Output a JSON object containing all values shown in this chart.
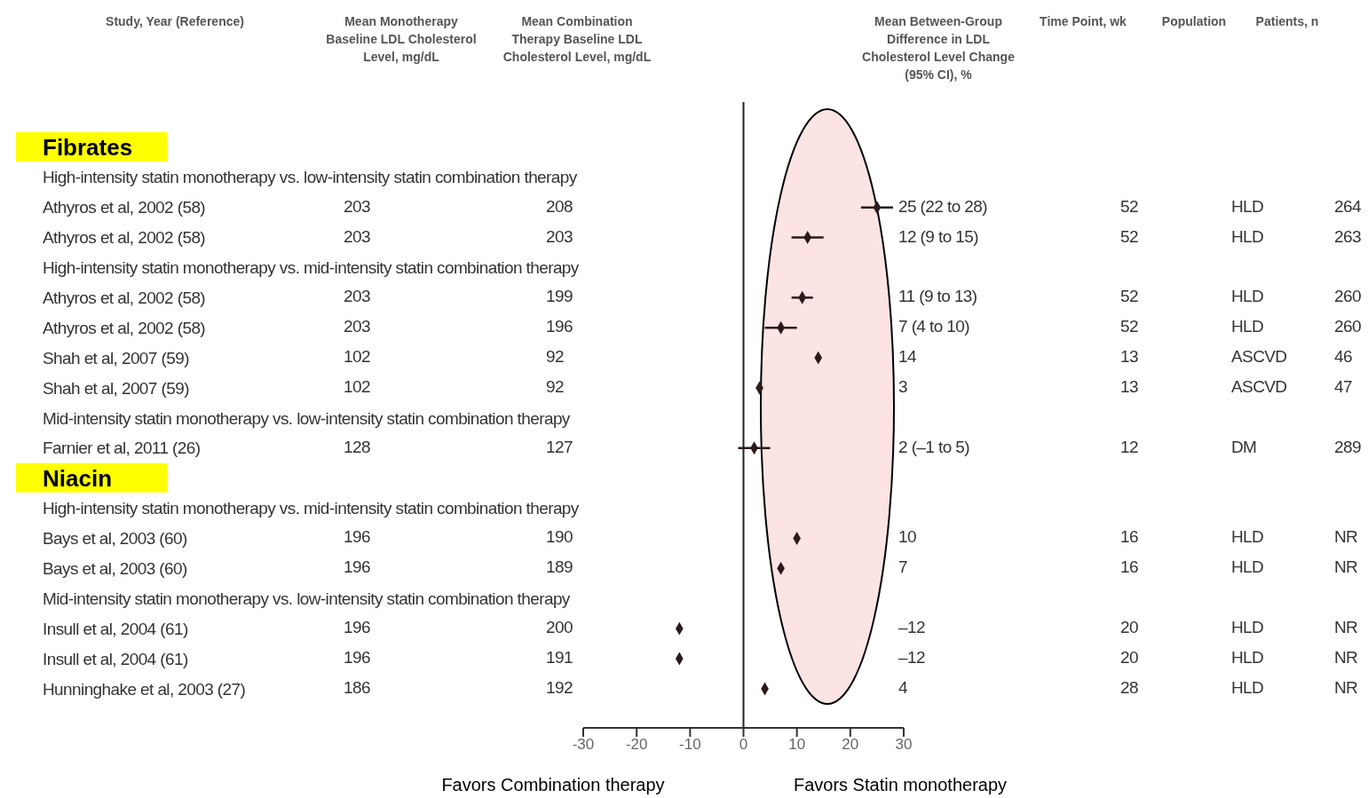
{
  "chart_data": {
    "type": "scatter",
    "orientation": "horizontal",
    "marker": "diamond",
    "color": "#2b1a1a",
    "categories": [
      "Fibrates",
      "High-intensity statin monotherapy vs. low-intensity statin combination therapy",
      "Athyros et al, 2002 (58)",
      "Athyros et al, 2002 (58)",
      "High-intensity statin monotherapy vs. mid-intensity statin combination therapy",
      "Athyros et al, 2002 (58)",
      "Athyros et al, 2002 (58)",
      "Shah et al, 2007 (59)",
      "Shah et al, 2007 (59)",
      "Mid-intensity statin monotherapy vs. low-intensity statin combination therapy",
      "Farnier et al, 2011 (26)",
      "Niacin",
      "High-intensity statin monotherapy vs. mid-intensity statin combination therapy",
      "Bays et al, 2003 (60)",
      "Bays et al, 2003 (60)",
      "Mid-intensity statin monotherapy vs. low-intensity statin combination therapy",
      "Insull et al, 2004 (61)",
      "Insull et al, 2004 (61)",
      "Hunninghake et al, 2003 (27)"
    ],
    "values": [
      null,
      null,
      25,
      12,
      null,
      11,
      7,
      14,
      3,
      null,
      2,
      null,
      null,
      10,
      7,
      null,
      -12,
      -12,
      4
    ],
    "errors": [
      null,
      null,
      [
        22,
        28
      ],
      [
        9,
        15
      ],
      null,
      [
        9,
        13
      ],
      [
        4,
        10
      ],
      null,
      null,
      null,
      [
        -1,
        5
      ],
      null,
      null,
      null,
      null,
      null,
      null,
      null,
      null
    ],
    "xlim": [
      -30,
      30
    ],
    "xticks": [
      -30,
      -20,
      -10,
      0,
      10,
      20,
      30
    ],
    "ref_lines": [
      {
        "axis": "x",
        "value": 0
      }
    ],
    "annotations": [
      "Study, Year (Reference)",
      "Mean Monotherapy Baseline LDL Cholesterol Level, mg/dL",
      "Mean Combination Therapy Baseline LDL Cholesterol Level, mg/dL",
      "Mean Between-Group Difference in LDL Cholesterol Level Change (95% CI), %",
      "Time Point, wk",
      "Population",
      "Patients, n",
      "Favors Combination therapy",
      "Favors Statin monotherapy",
      "203",
      "208",
      "25 (22 to 28)",
      "52",
      "HLD",
      "264",
      "203",
      "203",
      "12 (9 to 15)",
      "52",
      "HLD",
      "263",
      "203",
      "199",
      "11 (9 to 13)",
      "52",
      "HLD",
      "260",
      "203",
      "196",
      "7 (4 to 10)",
      "52",
      "HLD",
      "260",
      "102",
      "92",
      "14",
      "13",
      "ASCVD",
      "46",
      "102",
      "92",
      "3",
      "13",
      "ASCVD",
      "47",
      "128",
      "127",
      "2 (–1 to 5)",
      "12",
      "DM",
      "289",
      "196",
      "190",
      "10",
      "16",
      "HLD",
      "NR",
      "196",
      "189",
      "7",
      "16",
      "HLD",
      "NR",
      "196",
      "200",
      "–12",
      "20",
      "HLD",
      "NR",
      "196",
      "191",
      "–12",
      "20",
      "HLD",
      "NR",
      "186",
      "192",
      "4",
      "28",
      "HLD",
      "NR"
    ]
  }
}
